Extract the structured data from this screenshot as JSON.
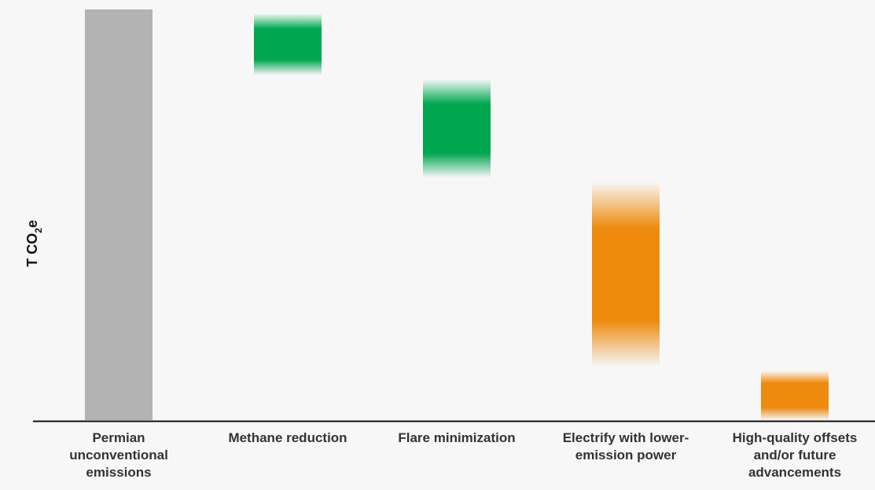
{
  "chart_data": {
    "type": "bar",
    "subtype": "waterfall",
    "ylabel": {
      "text": "T CO",
      "subscript": "2",
      "suffix": "e"
    },
    "ylim": [
      0,
      100
    ],
    "grid": false,
    "legend": "none",
    "y_ticks_shown": false,
    "categories": [
      {
        "lines": [
          "Permian",
          "unconventional",
          "emissions"
        ]
      },
      {
        "lines": [
          "Methane reduction"
        ]
      },
      {
        "lines": [
          "Flare minimization"
        ]
      },
      {
        "lines": [
          "Electrify with lower-",
          "emission power"
        ]
      },
      {
        "lines": [
          "High-quality offsets",
          "and/or future",
          "advancements"
        ]
      }
    ],
    "bars": [
      {
        "category_index": 0,
        "kind": "total",
        "low": 0,
        "high": 100,
        "color": "#b3b3b3",
        "fuzzy": false
      },
      {
        "category_index": 1,
        "kind": "reduction",
        "low": 84,
        "high": 99,
        "color": "#00a650",
        "fuzzy": true
      },
      {
        "category_index": 2,
        "kind": "reduction",
        "low": 59,
        "high": 83,
        "color": "#00a650",
        "fuzzy": true
      },
      {
        "category_index": 3,
        "kind": "reduction",
        "low": 13,
        "high": 58,
        "color": "#ee8a0e",
        "fuzzy": true
      },
      {
        "category_index": 4,
        "kind": "reduction",
        "low": 0,
        "high": 12,
        "color": "#ee8a0e",
        "fuzzy": true
      }
    ]
  }
}
